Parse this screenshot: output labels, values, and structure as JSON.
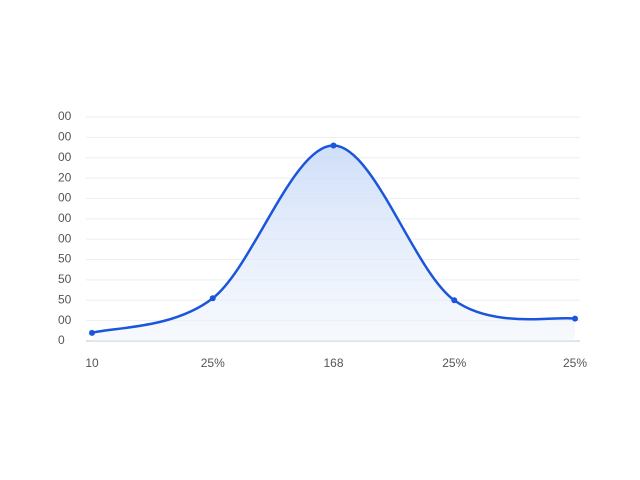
{
  "chart_data": {
    "type": "line",
    "categories": [
      "10",
      "25%",
      "168",
      "25%",
      "25%"
    ],
    "series": [
      {
        "color": "#1a56db",
        "values": [
          0.4,
          2.1,
          9.6,
          2.0,
          1.1
        ]
      }
    ],
    "ylim": [
      0,
      11
    ],
    "yticks": [
      0,
      {
        "value": 1,
        "label": "00"
      },
      {
        "value": 2,
        "label": "50"
      },
      {
        "value": 3,
        "label": "50"
      },
      {
        "value": 4,
        "label": "50"
      },
      {
        "value": 5,
        "label": "00"
      },
      {
        "value": 6,
        "label": "00"
      },
      {
        "value": 7,
        "label": "00"
      },
      {
        "value": 8,
        "label": "20"
      },
      {
        "value": 9,
        "label": "00"
      },
      {
        "value": 10,
        "label": "00"
      },
      {
        "value": 11,
        "label": "00"
      }
    ],
    "grid": true
  }
}
